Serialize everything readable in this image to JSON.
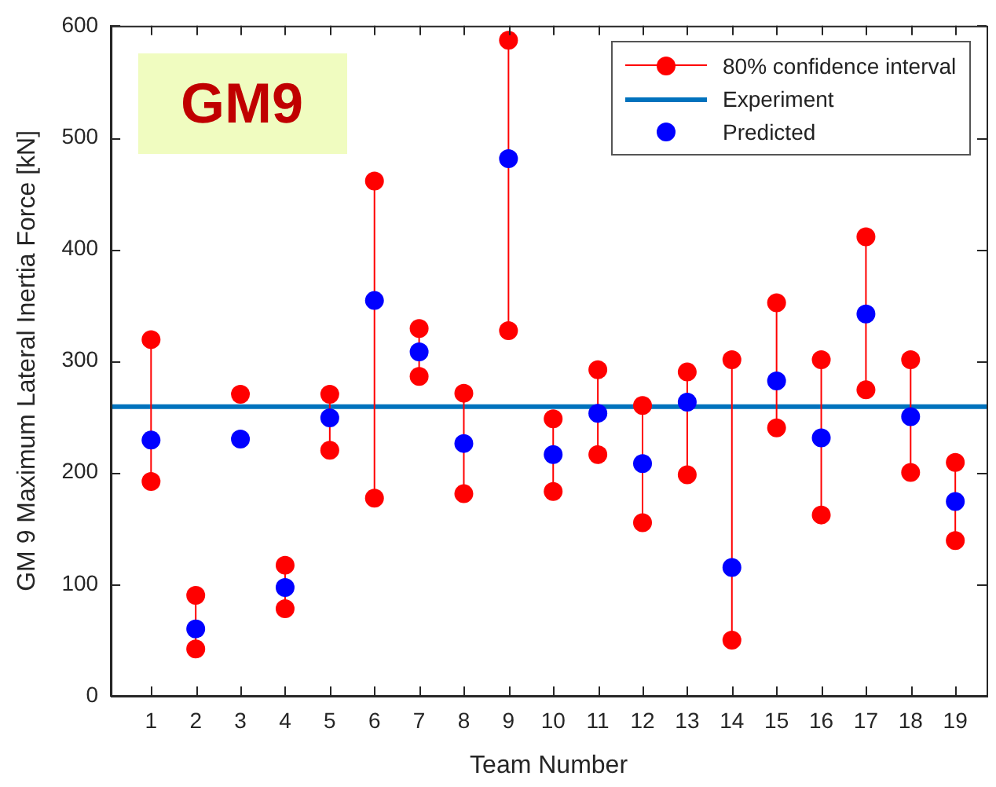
{
  "chart_data": {
    "type": "scatter",
    "xlabel": "Team Number",
    "ylabel": "GM 9 Maximum Lateral Inertia Force [kN]",
    "x": [
      1,
      2,
      3,
      4,
      5,
      6,
      7,
      8,
      9,
      10,
      11,
      12,
      13,
      14,
      15,
      16,
      17,
      18,
      19
    ],
    "xlim": [
      0.1,
      19.7
    ],
    "xticks": [
      1,
      2,
      3,
      4,
      5,
      6,
      7,
      8,
      9,
      10,
      11,
      12,
      13,
      14,
      15,
      16,
      17,
      18,
      19
    ],
    "ylim": [
      0,
      600
    ],
    "yticks": [
      0,
      100,
      200,
      300,
      400,
      500,
      600
    ],
    "series": [
      {
        "name": "80% confidence interval",
        "type": "line",
        "color": "#ff0000",
        "x": [
          1,
          1,
          null,
          2,
          2,
          null,
          null,
          3,
          null,
          4,
          4,
          null,
          5,
          5,
          null,
          6,
          6,
          null,
          7,
          7,
          null,
          8,
          8,
          null,
          9,
          9,
          null,
          10,
          10,
          null,
          11,
          11,
          null,
          12,
          12,
          null,
          13,
          13,
          null,
          14,
          14,
          null,
          15,
          15,
          null,
          16,
          16,
          null,
          17,
          17,
          null,
          18,
          18,
          null,
          19,
          19
        ],
        "values": [
          192,
          319,
          null,
          42,
          90,
          null,
          null,
          270,
          null,
          78,
          117,
          null,
          220,
          270,
          null,
          177,
          461,
          null,
          286,
          329,
          null,
          181,
          271,
          null,
          327,
          587,
          null,
          183,
          248,
          null,
          216,
          292,
          null,
          155,
          260,
          null,
          198,
          290,
          null,
          50,
          301,
          null,
          240,
          352,
          null,
          162,
          301,
          null,
          274,
          411,
          null,
          200,
          301,
          null,
          139,
          209
        ]
      },
      {
        "name": "Predicted",
        "type": "scatter",
        "color": "#0000ff",
        "values": [
          229,
          60,
          230,
          97,
          249,
          354,
          308,
          226,
          481,
          216,
          253,
          208,
          263,
          115,
          282,
          231,
          342,
          250,
          174
        ]
      }
    ],
    "ref_lines": [
      {
        "axis": "y",
        "value": 259,
        "label": "Experiment",
        "color": "#0072bd"
      }
    ],
    "annotations": [
      "GM9"
    ],
    "legend": "top right",
    "grid": false,
    "marker": "circle"
  }
}
